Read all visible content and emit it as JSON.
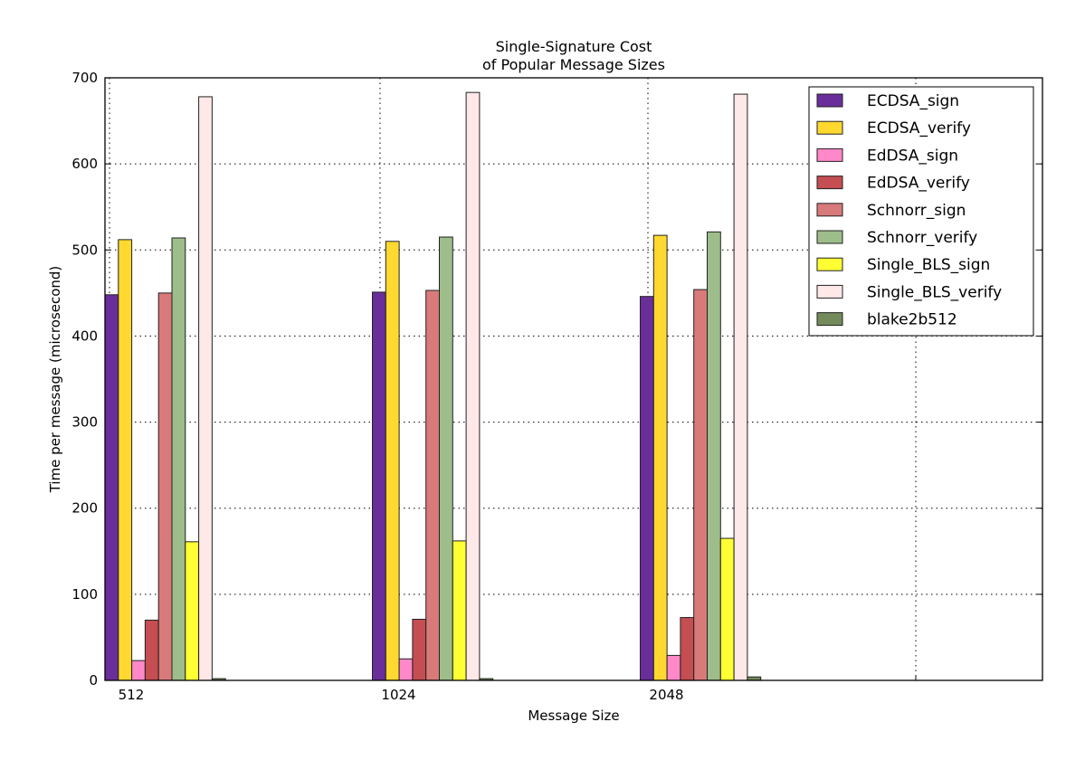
{
  "chart_data": {
    "type": "bar",
    "title": "Single-Signature Cost\nof Popular Message Sizes",
    "title_lines": [
      "Single-Signature Cost",
      "of Popular Message Sizes"
    ],
    "xlabel": "Message Size",
    "ylabel": "Time per message (microsecond)",
    "ylim": [
      0,
      700
    ],
    "yticks": [
      0,
      100,
      200,
      300,
      400,
      500,
      600,
      700
    ],
    "categories": [
      "512",
      "1024",
      "2048"
    ],
    "grid": true,
    "legend_position": "top-right",
    "series": [
      {
        "name": "ECDSA_sign",
        "color": "#6a2e9a",
        "values": [
          448,
          451,
          446
        ]
      },
      {
        "name": "ECDSA_verify",
        "color": "#ffd92f",
        "values": [
          512,
          510,
          517
        ]
      },
      {
        "name": "EdDSA_sign",
        "color": "#ff88c8",
        "values": [
          23,
          25,
          29
        ]
      },
      {
        "name": "EdDSA_verify",
        "color": "#c44e52",
        "values": [
          70,
          71,
          73
        ]
      },
      {
        "name": "Schnorr_sign",
        "color": "#d87a7a",
        "values": [
          450,
          453,
          454
        ]
      },
      {
        "name": "Schnorr_verify",
        "color": "#9dbd8a",
        "values": [
          514,
          515,
          521
        ]
      },
      {
        "name": "Single_BLS_sign",
        "color": "#ffff33",
        "values": [
          161,
          162,
          165
        ]
      },
      {
        "name": "Single_BLS_verify",
        "color": "#ffe8e8",
        "values": [
          678,
          683,
          681
        ]
      },
      {
        "name": "blake2b512",
        "color": "#738a5a",
        "values": [
          2,
          2,
          4
        ]
      }
    ]
  }
}
